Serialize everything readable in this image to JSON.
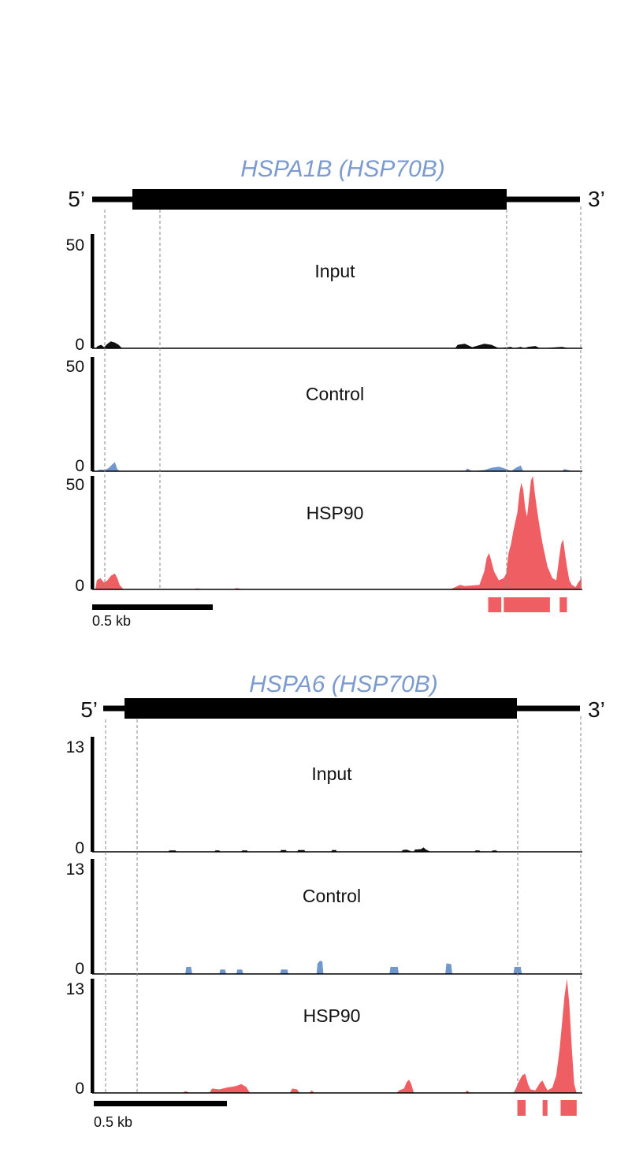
{
  "chart_data": [
    {
      "type": "area",
      "title": "HSPA1B (HSP70B)",
      "gene_model": {
        "five_prime_label": "5’",
        "three_prime_label": "3’"
      },
      "x_domain": [
        0,
        1000
      ],
      "tracks": [
        {
          "name": "Input",
          "color": "#111111",
          "ylim": [
            0,
            50
          ],
          "tick_labels": [
            "50",
            "0"
          ],
          "points": [
            [
              0,
              0
            ],
            [
              5,
              1
            ],
            [
              12,
              1.5
            ],
            [
              18,
              0.5
            ],
            [
              25,
              2
            ],
            [
              32,
              3
            ],
            [
              40,
              2.5
            ],
            [
              48,
              1.5
            ],
            [
              55,
              0
            ],
            [
              740,
              0
            ],
            [
              745,
              1.5
            ],
            [
              760,
              2
            ],
            [
              775,
              0.5
            ],
            [
              800,
              2
            ],
            [
              815,
              1.5
            ],
            [
              830,
              0
            ],
            [
              855,
              0.6
            ],
            [
              860,
              0
            ],
            [
              875,
              0.6
            ],
            [
              882,
              0
            ],
            [
              890,
              0.6
            ],
            [
              905,
              1
            ],
            [
              915,
              0
            ],
            [
              960,
              0.6
            ],
            [
              975,
              0
            ],
            [
              1000,
              0
            ]
          ]
        },
        {
          "name": "Control",
          "color": "#7098cc",
          "ylim": [
            0,
            50
          ],
          "tick_labels": [
            "50",
            "0"
          ],
          "points": [
            [
              0,
              0
            ],
            [
              10,
              0.8
            ],
            [
              20,
              0.5
            ],
            [
              28,
              1.5
            ],
            [
              35,
              3
            ],
            [
              40,
              4
            ],
            [
              45,
              1
            ],
            [
              50,
              0
            ],
            [
              760,
              0
            ],
            [
              765,
              1.2
            ],
            [
              775,
              0
            ],
            [
              800,
              0.5
            ],
            [
              815,
              1.5
            ],
            [
              830,
              2
            ],
            [
              845,
              1
            ],
            [
              855,
              0
            ],
            [
              865,
              1.5
            ],
            [
              875,
              2.5
            ],
            [
              880,
              0
            ],
            [
              960,
              0
            ],
            [
              965,
              1
            ],
            [
              980,
              0
            ],
            [
              1000,
              0
            ]
          ]
        },
        {
          "name": "HSP90",
          "color": "#ee5e62",
          "ylim": [
            0,
            50
          ],
          "tick_labels": [
            "50",
            "0"
          ],
          "points": [
            [
              0,
              0
            ],
            [
              3,
              4
            ],
            [
              10,
              5
            ],
            [
              18,
              3
            ],
            [
              25,
              4
            ],
            [
              32,
              6
            ],
            [
              40,
              7
            ],
            [
              45,
              5
            ],
            [
              50,
              2
            ],
            [
              58,
              0
            ],
            [
              200,
              0
            ],
            [
              210,
              0.5
            ],
            [
              220,
              0
            ],
            [
              285,
              0
            ],
            [
              290,
              0.6
            ],
            [
              305,
              0
            ],
            [
              730,
              0
            ],
            [
              740,
              1
            ],
            [
              750,
              2
            ],
            [
              760,
              1.5
            ],
            [
              790,
              2
            ],
            [
              800,
              8
            ],
            [
              805,
              14
            ],
            [
              810,
              16
            ],
            [
              815,
              12
            ],
            [
              820,
              8
            ],
            [
              825,
              6
            ],
            [
              830,
              4
            ],
            [
              840,
              5
            ],
            [
              845,
              7
            ],
            [
              850,
              16
            ],
            [
              855,
              20
            ],
            [
              860,
              26
            ],
            [
              868,
              34
            ],
            [
              872,
              42
            ],
            [
              876,
              47
            ],
            [
              880,
              44
            ],
            [
              884,
              36
            ],
            [
              888,
              32
            ],
            [
              892,
              40
            ],
            [
              896,
              48
            ],
            [
              900,
              50
            ],
            [
              904,
              42
            ],
            [
              908,
              36
            ],
            [
              912,
              30
            ],
            [
              920,
              20
            ],
            [
              930,
              10
            ],
            [
              940,
              5
            ],
            [
              948,
              4
            ],
            [
              954,
              14
            ],
            [
              958,
              20
            ],
            [
              962,
              22
            ],
            [
              966,
              16
            ],
            [
              970,
              10
            ],
            [
              975,
              4
            ],
            [
              980,
              2
            ],
            [
              988,
              1
            ],
            [
              993,
              3
            ],
            [
              1000,
              5
            ]
          ]
        }
      ],
      "peaks": [
        [
          808,
          835
        ],
        [
          840,
          935
        ],
        [
          955,
          970
        ]
      ],
      "scale_bar": {
        "label": "0.5 kb",
        "length": 250
      }
    },
    {
      "type": "area",
      "title": "HSPA6 (HSP70B)",
      "gene_model": {
        "five_prime_label": "5’",
        "three_prime_label": "3’"
      },
      "x_domain": [
        0,
        1000
      ],
      "tracks": [
        {
          "name": "Input",
          "color": "#111111",
          "ylim": [
            0,
            13
          ],
          "tick_labels": [
            "13",
            "0"
          ],
          "points": [
            [
              0,
              0
            ],
            [
              150,
              0
            ],
            [
              152,
              0.15
            ],
            [
              165,
              0.15
            ],
            [
              167,
              0
            ],
            [
              245,
              0
            ],
            [
              247,
              0.15
            ],
            [
              255,
              0.15
            ],
            [
              257,
              0
            ],
            [
              300,
              0
            ],
            [
              302,
              0.15
            ],
            [
              312,
              0.15
            ],
            [
              314,
              0
            ],
            [
              380,
              0
            ],
            [
              382,
              0.2
            ],
            [
              392,
              0.2
            ],
            [
              394,
              0
            ],
            [
              415,
              0
            ],
            [
              417,
              0.2
            ],
            [
              430,
              0.2
            ],
            [
              432,
              0
            ],
            [
              485,
              0
            ],
            [
              487,
              0.2
            ],
            [
              495,
              0.2
            ],
            [
              497,
              0
            ],
            [
              630,
              0
            ],
            [
              632,
              0.2
            ],
            [
              640,
              0.25
            ],
            [
              648,
              0.1
            ],
            [
              650,
              0
            ],
            [
              655,
              0
            ],
            [
              657,
              0.25
            ],
            [
              670,
              0.3
            ],
            [
              675,
              0.5
            ],
            [
              680,
              0.25
            ],
            [
              690,
              0
            ],
            [
              780,
              0
            ],
            [
              782,
              0.15
            ],
            [
              790,
              0.15
            ],
            [
              792,
              0
            ],
            [
              815,
              0
            ],
            [
              817,
              0.15
            ],
            [
              825,
              0.15
            ],
            [
              827,
              0
            ],
            [
              1000,
              0
            ]
          ]
        },
        {
          "name": "Control",
          "color": "#7098cc",
          "ylim": [
            0,
            13
          ],
          "tick_labels": [
            "13",
            "0"
          ],
          "points": [
            [
              0,
              0
            ],
            [
              185,
              0
            ],
            [
              187,
              0.8
            ],
            [
              197,
              0.8
            ],
            [
              199,
              0
            ],
            [
              255,
              0
            ],
            [
              257,
              0.5
            ],
            [
              267,
              0.5
            ],
            [
              269,
              0
            ],
            [
              290,
              0
            ],
            [
              292,
              0.5
            ],
            [
              302,
              0.5
            ],
            [
              304,
              0
            ],
            [
              380,
              0
            ],
            [
              382,
              0.5
            ],
            [
              395,
              0.5
            ],
            [
              397,
              0
            ],
            [
              455,
              0
            ],
            [
              457,
              1.2
            ],
            [
              462,
              1.5
            ],
            [
              467,
              1.4
            ],
            [
              469,
              0
            ],
            [
              605,
              0
            ],
            [
              607,
              0.8
            ],
            [
              622,
              0.8
            ],
            [
              624,
              0
            ],
            [
              720,
              0
            ],
            [
              722,
              1.2
            ],
            [
              732,
              1.1
            ],
            [
              734,
              0
            ],
            [
              860,
              0
            ],
            [
              862,
              0.8
            ],
            [
              875,
              0.8
            ],
            [
              877,
              0
            ],
            [
              1000,
              0
            ]
          ]
        },
        {
          "name": "HSP90",
          "color": "#ee5e62",
          "ylim": [
            0,
            13
          ],
          "tick_labels": [
            "13",
            "0"
          ],
          "points": [
            [
              0,
              0
            ],
            [
              180,
              0
            ],
            [
              185,
              0.2
            ],
            [
              195,
              0
            ],
            [
              235,
              0
            ],
            [
              240,
              0.5
            ],
            [
              255,
              0.4
            ],
            [
              270,
              0.6
            ],
            [
              280,
              0.7
            ],
            [
              290,
              0.8
            ],
            [
              300,
              1.0
            ],
            [
              310,
              0.7
            ],
            [
              318,
              0
            ],
            [
              400,
              0
            ],
            [
              405,
              0.5
            ],
            [
              415,
              0.4
            ],
            [
              420,
              0
            ],
            [
              440,
              0
            ],
            [
              445,
              0.3
            ],
            [
              450,
              0
            ],
            [
              620,
              0
            ],
            [
              625,
              0.3
            ],
            [
              635,
              0.5
            ],
            [
              640,
              1.2
            ],
            [
              645,
              1.5
            ],
            [
              650,
              1.0
            ],
            [
              655,
              0
            ],
            [
              760,
              0
            ],
            [
              765,
              0.3
            ],
            [
              770,
              0
            ],
            [
              860,
              0
            ],
            [
              865,
              0.5
            ],
            [
              870,
              1.2
            ],
            [
              878,
              2.0
            ],
            [
              884,
              2.2
            ],
            [
              890,
              1.0
            ],
            [
              895,
              0.4
            ],
            [
              905,
              0.3
            ],
            [
              915,
              1.2
            ],
            [
              920,
              1.4
            ],
            [
              925,
              0.8
            ],
            [
              930,
              0.3
            ],
            [
              940,
              0.6
            ],
            [
              948,
              2
            ],
            [
              955,
              5
            ],
            [
              960,
              8
            ],
            [
              965,
              11
            ],
            [
              970,
              13
            ],
            [
              975,
              10
            ],
            [
              980,
              5
            ],
            [
              985,
              1
            ],
            [
              990,
              0
            ],
            [
              1000,
              0
            ]
          ]
        }
      ],
      "peaks": [
        [
          868,
          885
        ],
        [
          920,
          930
        ],
        [
          957,
          990
        ]
      ],
      "scale_bar": {
        "label": "0.5 kb",
        "length": 270
      }
    }
  ]
}
